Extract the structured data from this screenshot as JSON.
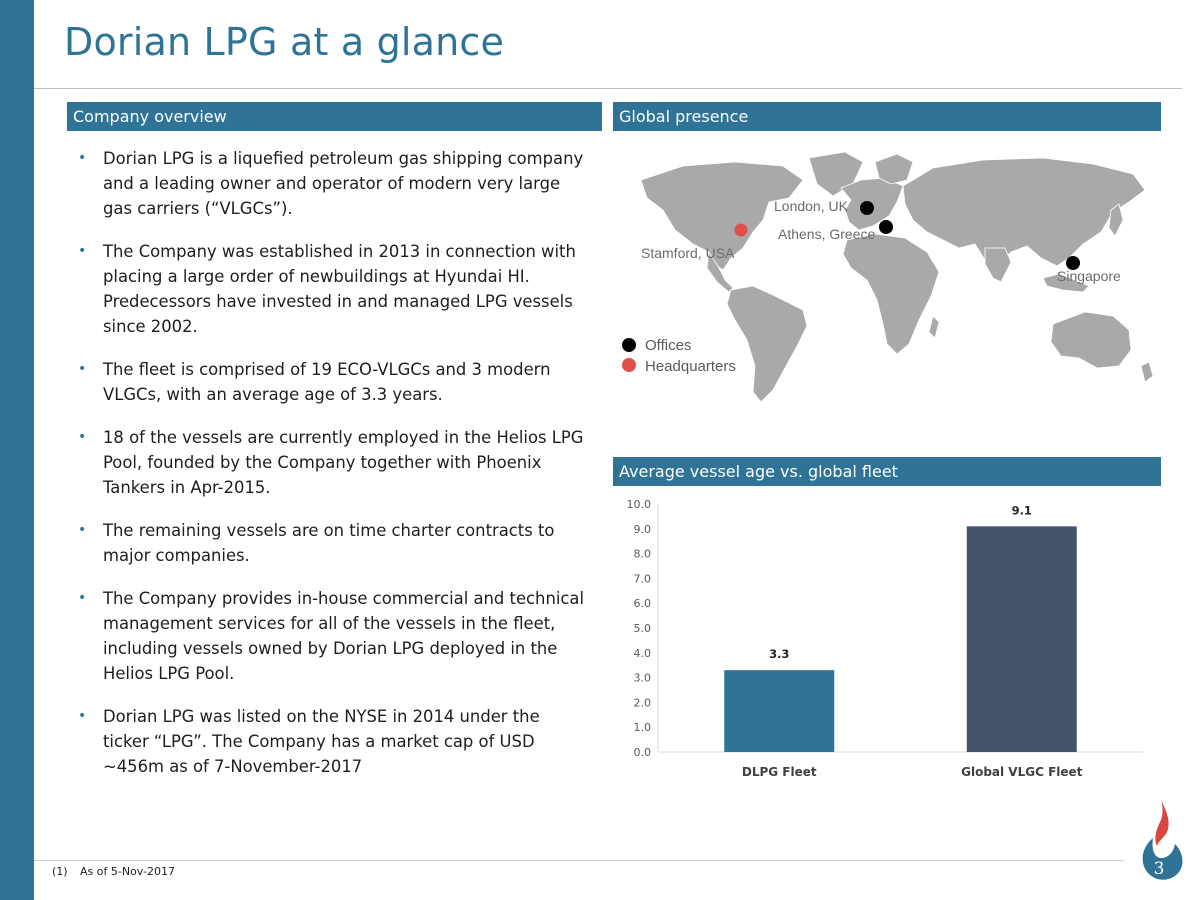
{
  "page": {
    "title": "Dorian LPG at a glance",
    "page_number": "3"
  },
  "overview": {
    "header": "Company overview",
    "bullets": [
      "Dorian LPG is a liquefied petroleum gas shipping company and a leading owner and operator of modern very large gas carriers (“VLGCs”).",
      "The Company was established in 2013 in connection with placing a large order of newbuildings at Hyundai HI. Predecessors have invested in and managed LPG vessels since 2002.",
      "The fleet is comprised of 19 ECO-VLGCs and 3 modern VLGCs, with an average age of 3.3 years.",
      "18 of the vessels are currently employed in the Helios LPG Pool, founded by the Company together with Phoenix Tankers in Apr-2015.",
      "The remaining vessels are on time charter contracts to major companies.",
      "The Company provides in-house commercial and technical management services for all of the vessels in the fleet, including vessels owned by Dorian LPG deployed in the Helios LPG Pool.",
      "Dorian LPG was listed on the NYSE in 2014 under the ticker “LPG”. The Company has a market cap of USD ~456m as of 7-November-2017"
    ]
  },
  "presence": {
    "header": "Global presence",
    "locations": {
      "london": "London, UK",
      "athens": "Athens, Greece",
      "stamford": "Stamford, USA",
      "singapore": "Singapore"
    },
    "legend": {
      "offices": "Offices",
      "headquarters": "Headquarters"
    },
    "colors": {
      "office": "#000000",
      "headquarters": "#e0504a",
      "land": "#a9a9a9"
    }
  },
  "age_chart": {
    "header": "Average vessel age vs. global fleet"
  },
  "chart_data": {
    "type": "bar",
    "categories": [
      "DLPG Fleet",
      "Global VLGC Fleet"
    ],
    "values": [
      3.3,
      9.1
    ],
    "value_labels": [
      "3.3",
      "9.1"
    ],
    "colors": [
      "#2f7497",
      "#44546a"
    ],
    "ylim": [
      0,
      10
    ],
    "yticks": [
      "0.0",
      "1.0",
      "2.0",
      "3.0",
      "4.0",
      "5.0",
      "6.0",
      "7.0",
      "8.0",
      "9.0",
      "10.0"
    ],
    "grid": false
  },
  "footnote": {
    "number": "(1)",
    "text": "As of 5-Nov-2017"
  },
  "theme": {
    "accent": "#2f7497"
  }
}
